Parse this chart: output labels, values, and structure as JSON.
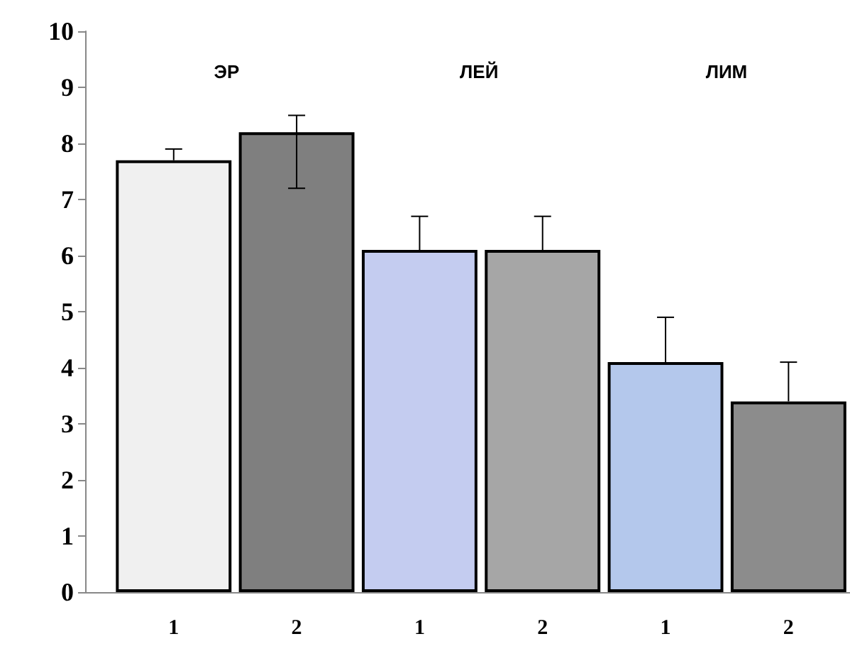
{
  "chart_data": {
    "type": "bar",
    "categories": [
      "1",
      "2",
      "1",
      "2",
      "1",
      "2"
    ],
    "values": [
      7.7,
      8.2,
      6.1,
      6.1,
      4.1,
      3.4
    ],
    "colors": [
      "#f0f0f0",
      "#7f7f7f",
      "#c4ccf0",
      "#a6a6a6",
      "#b4c8ec",
      "#8c8c8c"
    ],
    "errors": [
      [
        7.7,
        7.9
      ],
      [
        7.2,
        8.5
      ],
      [
        6.1,
        6.7
      ],
      [
        6.1,
        6.7
      ],
      [
        4.1,
        4.9
      ],
      [
        3.4,
        4.1
      ]
    ],
    "ylim": [
      0,
      10
    ],
    "yticks": [
      0,
      1,
      2,
      3,
      4,
      5,
      6,
      7,
      8,
      9,
      10
    ],
    "annotations": [
      "ЭР",
      "ЛЕЙ",
      "ЛИМ"
    ],
    "grid": false
  }
}
